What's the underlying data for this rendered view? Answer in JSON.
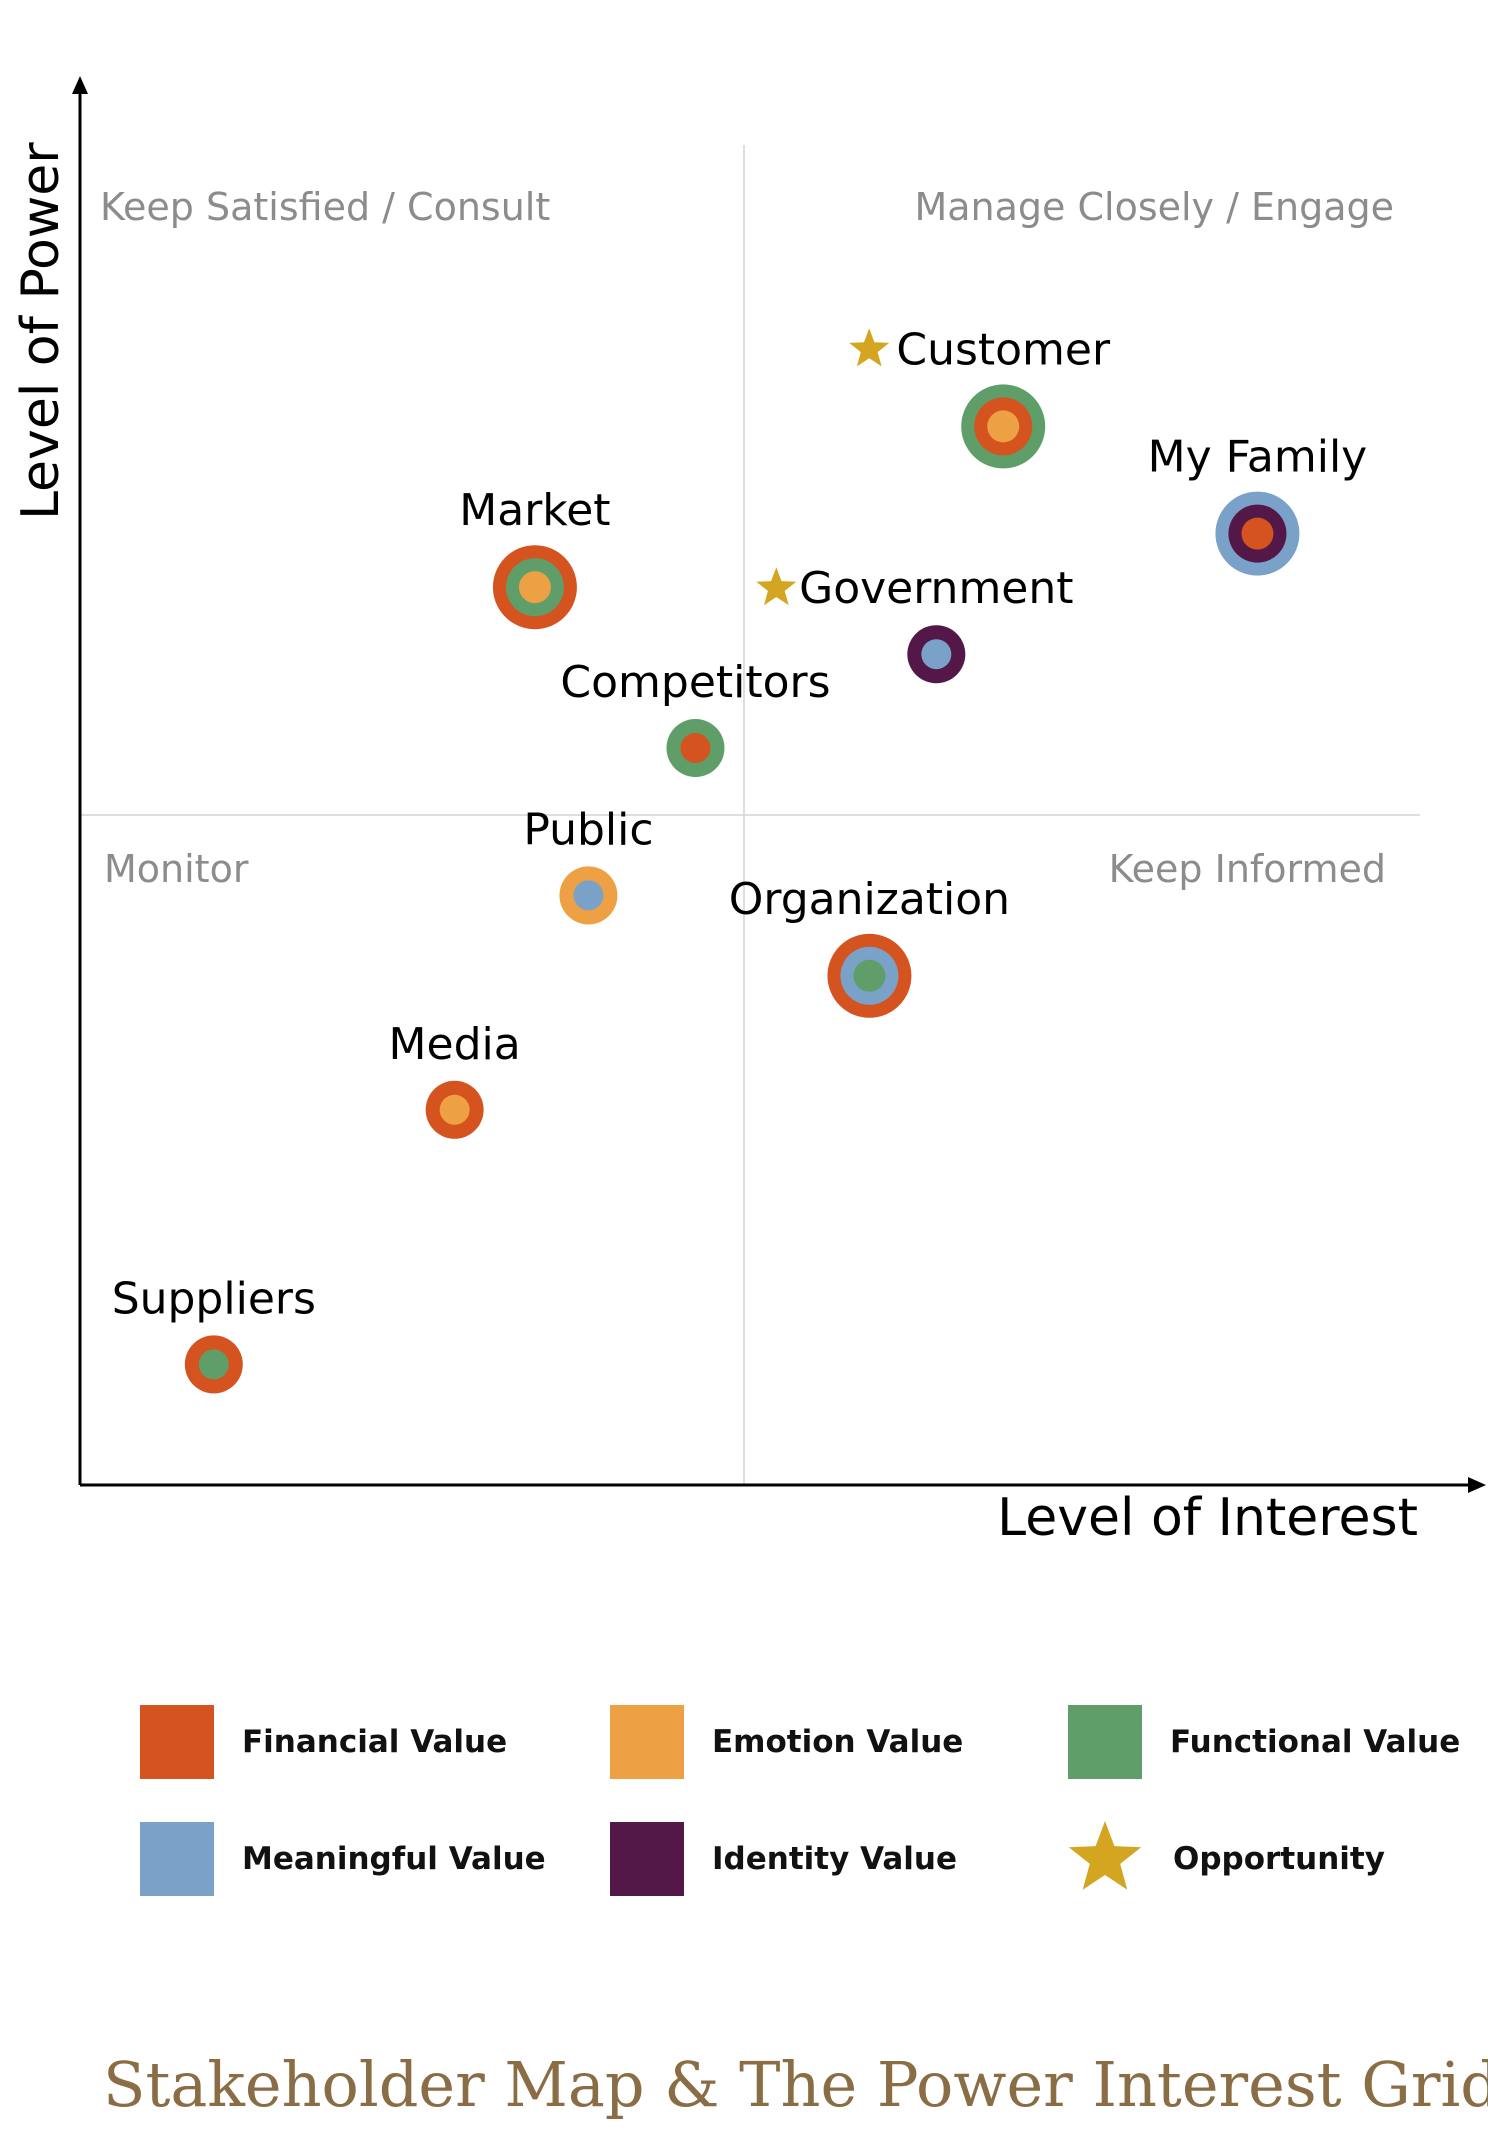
{
  "colors": {
    "financial": "#d4531f",
    "emotion": "#eda144",
    "functional": "#5f9e68",
    "meaningful": "#7aa1c8",
    "identity": "#541848",
    "opportunity": "#d4a520",
    "title": "#8a6d45",
    "quadrant_label": "#8c8c8c"
  },
  "chart_data": {
    "type": "scatter",
    "title": "Stakeholder Map & The Power Interest Grid",
    "xlabel": "Level of Interest",
    "ylabel": "Level of Power",
    "xlim": [
      0,
      10
    ],
    "ylim": [
      0,
      10
    ],
    "grid": false,
    "quadrant_labels": {
      "top_left": "Keep Satisfied / Consult",
      "top_right": "Manage Closely / Engage",
      "bottom_left": "Monitor",
      "bottom_right": "Keep Informed"
    },
    "points": [
      {
        "name": "Customer",
        "x": 6.9,
        "y": 7.9,
        "size": "large",
        "outer": "functional",
        "middle": "financial",
        "inner": "emotion",
        "opportunity": true
      },
      {
        "name": "My Family",
        "x": 8.8,
        "y": 7.1,
        "size": "large",
        "outer": "meaningful",
        "middle": "identity",
        "inner": "financial",
        "opportunity": false
      },
      {
        "name": "Market",
        "x": 3.4,
        "y": 6.7,
        "size": "large",
        "outer": "financial",
        "middle": "functional",
        "inner": "emotion",
        "opportunity": false
      },
      {
        "name": "Government",
        "x": 6.4,
        "y": 6.2,
        "size": "small",
        "outer": "identity",
        "middle": null,
        "inner": "meaningful",
        "opportunity": true
      },
      {
        "name": "Competitors",
        "x": 4.6,
        "y": 5.5,
        "size": "small",
        "outer": "functional",
        "middle": null,
        "inner": "financial",
        "opportunity": false
      },
      {
        "name": "Public",
        "x": 3.8,
        "y": 4.4,
        "size": "small",
        "outer": "emotion",
        "middle": null,
        "inner": "meaningful",
        "opportunity": false
      },
      {
        "name": "Organization",
        "x": 5.9,
        "y": 3.8,
        "size": "large",
        "outer": "financial",
        "middle": "meaningful",
        "inner": "functional",
        "opportunity": false
      },
      {
        "name": "Media",
        "x": 2.8,
        "y": 2.8,
        "size": "small",
        "outer": "financial",
        "middle": null,
        "inner": "emotion",
        "opportunity": false
      },
      {
        "name": "Suppliers",
        "x": 1.0,
        "y": 0.9,
        "size": "small",
        "outer": "financial",
        "middle": null,
        "inner": "functional",
        "opportunity": false
      }
    ]
  },
  "legend": {
    "financial": "Financial Value",
    "emotion": "Emotion Value",
    "functional": "Functional Value",
    "meaningful": "Meaningful Value",
    "identity": "Identity Value",
    "opportunity": "Opportunity"
  }
}
